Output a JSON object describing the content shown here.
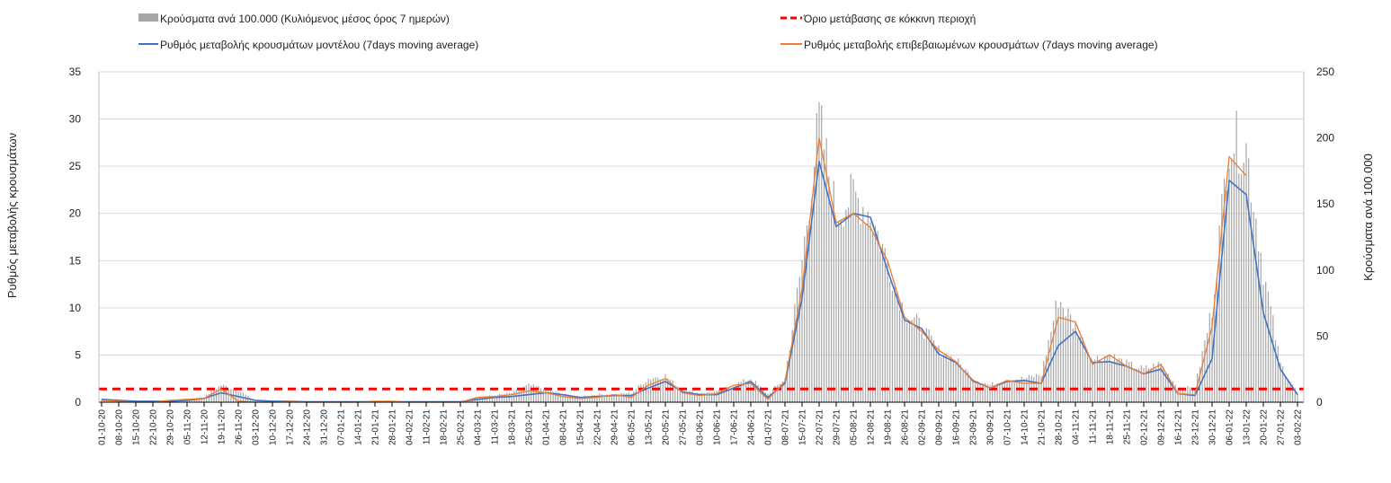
{
  "chart_data": {
    "type": "bar+line",
    "legend": {
      "bars": "Κρούσματα ανά 100.000 (Κυλιόμενος μέσος όρος 7 ημερών)",
      "threshold": "Όριο μετάβασης σε κόκκινη περιοχή",
      "model": "Ρυθμός μεταβολής κρουσμάτων μοντέλου (7days moving average)",
      "confirmed": "Ρυθμός μεταβολής επιβεβαιωμένων κρουσμάτων (7days moving average)",
      "placement": "top"
    },
    "ylabel_left": "Ρυθμός μεταβολής κρουσμάτων",
    "ylabel_right": "Κρούσματα ανά 100.000",
    "ylim_left": [
      0,
      35
    ],
    "yticks_left": [
      0,
      5,
      10,
      15,
      20,
      25,
      30,
      35
    ],
    "ylim_right": [
      0,
      250
    ],
    "yticks_right": [
      0,
      50,
      100,
      150,
      200,
      250
    ],
    "grid": "horizontal",
    "colors": {
      "bars": "#a6a6a6",
      "threshold": "#ff0000",
      "model": "#4472c4",
      "confirmed": "#ed7d31"
    },
    "threshold_right_axis": 10,
    "categories": [
      "01-10-20",
      "08-10-20",
      "15-10-20",
      "22-10-20",
      "29-10-20",
      "05-11-20",
      "12-11-20",
      "19-11-20",
      "26-11-20",
      "03-12-20",
      "10-12-20",
      "17-12-20",
      "24-12-20",
      "31-12-20",
      "07-01-21",
      "14-01-21",
      "21-01-21",
      "28-01-21",
      "04-02-21",
      "11-02-21",
      "18-02-21",
      "25-02-21",
      "04-03-21",
      "11-03-21",
      "18-03-21",
      "25-03-21",
      "01-04-21",
      "08-04-21",
      "15-04-21",
      "22-04-21",
      "29-04-21",
      "06-05-21",
      "13-05-21",
      "20-05-21",
      "27-05-21",
      "03-06-21",
      "10-06-21",
      "17-06-21",
      "24-06-21",
      "01-07-21",
      "08-07-21",
      "15-07-21",
      "22-07-21",
      "29-07-21",
      "05-08-21",
      "12-08-21",
      "19-08-21",
      "26-08-21",
      "02-09-21",
      "09-09-21",
      "16-09-21",
      "23-09-21",
      "30-09-21",
      "07-10-21",
      "14-10-21",
      "21-10-21",
      "28-10-21",
      "04-11-21",
      "11-11-21",
      "18-11-21",
      "25-11-21",
      "02-12-21",
      "09-12-21",
      "16-12-21",
      "23-12-21",
      "30-12-21",
      "06-01-22",
      "13-01-22",
      "20-01-22",
      "27-01-22",
      "03-02-22"
    ],
    "series": [
      {
        "name": "cases_per_100k",
        "axis": "right",
        "values": [
          2,
          1,
          1,
          1,
          1,
          2,
          4,
          13,
          9,
          1,
          1,
          1,
          0,
          0,
          0,
          0,
          0,
          0,
          0,
          0,
          0,
          0,
          4,
          5,
          7,
          13,
          10,
          6,
          4,
          6,
          6,
          7,
          18,
          20,
          9,
          7,
          8,
          13,
          18,
          6,
          18,
          107,
          214,
          143,
          157,
          143,
          107,
          68,
          57,
          39,
          32,
          18,
          13,
          17,
          18,
          21,
          79,
          57,
          32,
          36,
          29,
          25,
          29,
          11,
          11,
          71,
          200,
          193,
          100,
          29,
          7
        ]
      },
      {
        "name": "model",
        "axis": "left",
        "values": [
          0.3,
          0.2,
          0.1,
          0.1,
          0.1,
          0.2,
          0.4,
          1.0,
          0.6,
          0.2,
          0.1,
          0.1,
          0.05,
          0.05,
          0.05,
          0.05,
          0.05,
          0.05,
          0.05,
          0.05,
          0.05,
          0.05,
          0.3,
          0.5,
          0.6,
          0.8,
          1.0,
          0.8,
          0.5,
          0.6,
          0.7,
          0.7,
          1.5,
          2.2,
          1.1,
          0.8,
          0.8,
          1.5,
          2.2,
          0.5,
          2.0,
          11,
          25.5,
          18.6,
          20,
          19.6,
          14,
          8.7,
          7.8,
          5.1,
          4.2,
          2.3,
          1.5,
          2.2,
          2.3,
          2.0,
          6.0,
          7.5,
          4.2,
          4.3,
          3.8,
          3.0,
          3.5,
          0.9,
          0.7,
          4.6,
          23.5,
          22,
          9.5,
          3.5,
          0.8
        ]
      },
      {
        "name": "confirmed",
        "axis": "left",
        "values": [
          0.2,
          0.1,
          0,
          0,
          0.2,
          0.3,
          0.4,
          1.4,
          0.1,
          0,
          0,
          0.1,
          0,
          0,
          0,
          0,
          0.1,
          0.1,
          0,
          0,
          0,
          0,
          0.5,
          0.6,
          0.8,
          1.2,
          1.0,
          0.6,
          0.4,
          0.5,
          0.8,
          0.5,
          1.8,
          2.5,
          1.0,
          0.7,
          0.9,
          1.8,
          2.0,
          0.3,
          2.2,
          12,
          28,
          19,
          20,
          18.5,
          15,
          9,
          7.5,
          5.5,
          4.3,
          2.2,
          1.5,
          2.3,
          2.0,
          2.0,
          9,
          8.5,
          4.0,
          5.0,
          3.8,
          3.0,
          4.0,
          0.9,
          0.8,
          8,
          26,
          24,
          null,
          null,
          null
        ]
      }
    ]
  }
}
